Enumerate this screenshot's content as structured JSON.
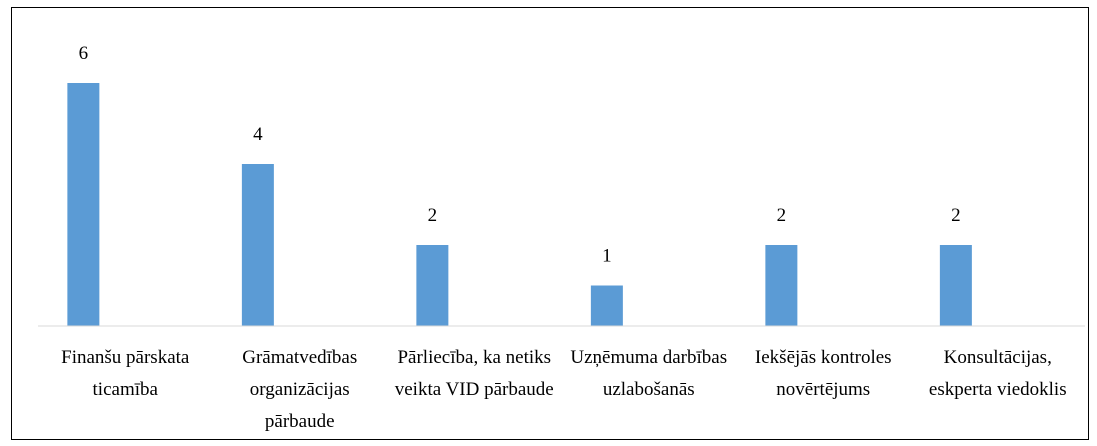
{
  "chart_data": {
    "type": "bar",
    "categories": [
      "Finanšu pārskata ticamība",
      "Grāmatvedības organizācijas pārbaude",
      "Pārliecība, ka netiks veikta VID pārbaude",
      "Uzņēmuma darbības uzlabošanās",
      "Iekšējās kontroles novērtējums",
      "Konsultācijas, eskperta viedoklis"
    ],
    "values": [
      6,
      4,
      2,
      1,
      2,
      2
    ],
    "color": "#5b9bd5",
    "ylim": [
      0,
      6
    ]
  }
}
